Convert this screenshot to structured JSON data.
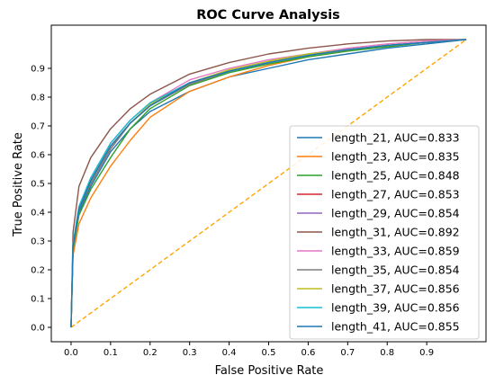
{
  "chart_data": {
    "type": "line",
    "title": "ROC Curve Analysis",
    "xlabel": "False Positive Rate",
    "ylabel": "True Positive Rate",
    "xlim": [
      -0.05,
      1.05
    ],
    "ylim": [
      -0.05,
      1.05
    ],
    "x_ticks": [
      "0.0",
      "0.1",
      "0.2",
      "0.3",
      "0.4",
      "0.5",
      "0.6",
      "0.7",
      "0.8",
      "0.9"
    ],
    "y_ticks": [
      "0.0",
      "0.1",
      "0.2",
      "0.3",
      "0.4",
      "0.5",
      "0.6",
      "0.7",
      "0.8",
      "0.9"
    ],
    "grid": false,
    "legend_position": "lower-right",
    "diagonal": {
      "x": [
        0,
        1
      ],
      "y": [
        0,
        1
      ],
      "color": "#ffa500",
      "style": "dashed"
    },
    "fpr": [
      0,
      0.005,
      0.02,
      0.05,
      0.1,
      0.15,
      0.2,
      0.3,
      0.4,
      0.5,
      0.6,
      0.7,
      0.8,
      0.9,
      1.0
    ],
    "series": [
      {
        "name": "length_21, AUC=0.833",
        "color": "#1f77b4",
        "tpr": [
          0,
          0.28,
          0.4,
          0.49,
          0.61,
          0.69,
          0.75,
          0.82,
          0.87,
          0.9,
          0.93,
          0.95,
          0.97,
          0.985,
          1.0
        ]
      },
      {
        "name": "length_23, AUC=0.835",
        "color": "#ff7f0e",
        "tpr": [
          0,
          0.25,
          0.36,
          0.45,
          0.56,
          0.65,
          0.73,
          0.82,
          0.87,
          0.91,
          0.94,
          0.96,
          0.98,
          0.99,
          1.0
        ]
      },
      {
        "name": "length_25, AUC=0.848",
        "color": "#2ca02c",
        "tpr": [
          0,
          0.27,
          0.39,
          0.48,
          0.59,
          0.69,
          0.76,
          0.84,
          0.885,
          0.915,
          0.94,
          0.96,
          0.975,
          0.99,
          1.0
        ]
      },
      {
        "name": "length_27, AUC=0.853",
        "color": "#d62728",
        "tpr": [
          0,
          0.28,
          0.41,
          0.5,
          0.62,
          0.71,
          0.77,
          0.845,
          0.89,
          0.92,
          0.945,
          0.965,
          0.98,
          0.99,
          1.0
        ]
      },
      {
        "name": "length_29, AUC=0.854",
        "color": "#9467bd",
        "tpr": [
          0,
          0.28,
          0.41,
          0.51,
          0.63,
          0.71,
          0.77,
          0.85,
          0.89,
          0.92,
          0.945,
          0.965,
          0.98,
          0.99,
          1.0
        ]
      },
      {
        "name": "length_31, AUC=0.892",
        "color": "#8c564b",
        "tpr": [
          0,
          0.33,
          0.49,
          0.59,
          0.69,
          0.76,
          0.81,
          0.88,
          0.92,
          0.95,
          0.97,
          0.985,
          0.995,
          1.0,
          1.0
        ]
      },
      {
        "name": "length_33, AUC=0.859",
        "color": "#e377c2",
        "tpr": [
          0,
          0.29,
          0.42,
          0.52,
          0.64,
          0.72,
          0.78,
          0.86,
          0.9,
          0.93,
          0.95,
          0.97,
          0.985,
          0.995,
          1.0
        ]
      },
      {
        "name": "length_35, AUC=0.854",
        "color": "#7f7f7f",
        "tpr": [
          0,
          0.28,
          0.41,
          0.5,
          0.62,
          0.71,
          0.77,
          0.845,
          0.89,
          0.92,
          0.945,
          0.965,
          0.98,
          0.99,
          1.0
        ]
      },
      {
        "name": "length_37, AUC=0.856",
        "color": "#bcbd22",
        "tpr": [
          0,
          0.28,
          0.41,
          0.51,
          0.63,
          0.71,
          0.775,
          0.85,
          0.895,
          0.925,
          0.95,
          0.965,
          0.98,
          0.99,
          1.0
        ]
      },
      {
        "name": "length_39, AUC=0.856",
        "color": "#17becf",
        "tpr": [
          0,
          0.29,
          0.42,
          0.52,
          0.64,
          0.72,
          0.78,
          0.85,
          0.89,
          0.92,
          0.945,
          0.965,
          0.98,
          0.99,
          1.0
        ]
      },
      {
        "name": "length_41, AUC=0.855",
        "color": "#1f77b4",
        "tpr": [
          0,
          0.28,
          0.41,
          0.51,
          0.63,
          0.71,
          0.77,
          0.85,
          0.89,
          0.92,
          0.945,
          0.965,
          0.98,
          0.99,
          1.0
        ]
      }
    ]
  }
}
